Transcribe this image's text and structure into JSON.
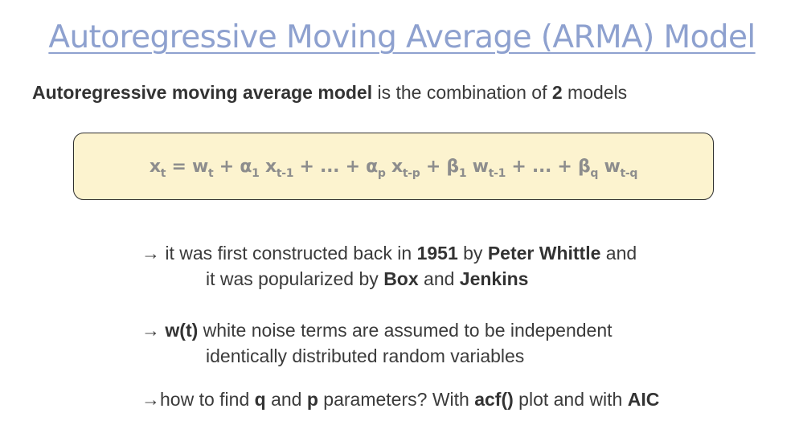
{
  "title": "Autoregressive Moving Average (ARMA) Model",
  "intro": {
    "bold_term": "Autoregressive moving average model",
    "text_mid": " is the combination of ",
    "bold_count": "2",
    "text_end": " models"
  },
  "formula": {
    "x": "x",
    "x_sub": "t",
    "eq": " = ",
    "w": "w",
    "w_sub": "t",
    "plus1": " + ",
    "a1": "α",
    "a1_sub": "1",
    "x1": " x",
    "x1_sub": "t-1",
    "dots1": " + ... + ",
    "ap": "α",
    "ap_sub": "p",
    "xp": " x",
    "xp_sub": "t-p",
    "plus2": " + ",
    "b1": "β",
    "b1_sub": "1",
    "w1": " w",
    "w1_sub": "t-1",
    "dots2": " + ... + ",
    "bq": "β",
    "bq_sub": "q",
    "wq": " w",
    "wq_sub": "t-q"
  },
  "bullets": {
    "b1": {
      "arrow": "→ ",
      "t1": "it was first constructed back in ",
      "year": "1951",
      "t2": " by ",
      "person": "Peter Whittle",
      "t3": " and",
      "t4": "it was popularized by ",
      "box": "Box",
      "t5": " and ",
      "jenkins": "Jenkins"
    },
    "b2": {
      "arrow": "→ ",
      "term": "w(t)",
      "t1": " white noise terms are assumed to be independent",
      "t2": "identically distributed random variables"
    },
    "b3": {
      "arrow": "→",
      "t1": "how to find ",
      "q": "q",
      "t2": " and ",
      "p": "p",
      "t3": " parameters? With ",
      "acf": "acf()",
      "t4": " plot and with ",
      "aic": "AIC"
    }
  }
}
